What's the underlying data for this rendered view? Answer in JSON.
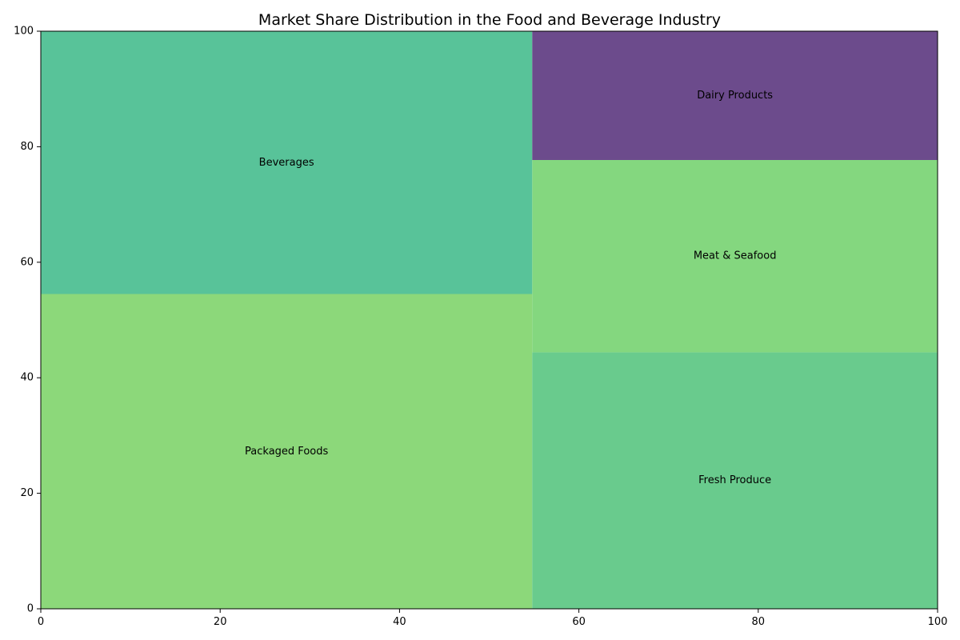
{
  "chart_data": {
    "type": "treemap",
    "title": "Market Share Distribution in the Food and Beverage Industry",
    "xlim": [
      0,
      100
    ],
    "ylim": [
      0,
      100
    ],
    "xticks": [
      0,
      20,
      40,
      60,
      80,
      100
    ],
    "yticks": [
      0,
      20,
      40,
      60,
      80,
      100
    ],
    "grid": false,
    "rectangles": [
      {
        "label": "Packaged Foods",
        "x0": 0,
        "x1": 54.8,
        "y0": 0,
        "y1": 54.5,
        "color": "#8cd87a"
      },
      {
        "label": "Beverages",
        "x0": 0,
        "x1": 54.8,
        "y0": 54.5,
        "y1": 100,
        "color": "#58c399"
      },
      {
        "label": "Fresh Produce",
        "x0": 54.8,
        "x1": 100,
        "y0": 0,
        "y1": 44.4,
        "color": "#69cb8d"
      },
      {
        "label": "Meat & Seafood",
        "x0": 54.8,
        "x1": 100,
        "y0": 44.4,
        "y1": 77.7,
        "color": "#84d77f"
      },
      {
        "label": "Dairy Products",
        "x0": 54.8,
        "x1": 100,
        "y0": 77.7,
        "y1": 100,
        "color": "#6c4b8c"
      }
    ]
  }
}
